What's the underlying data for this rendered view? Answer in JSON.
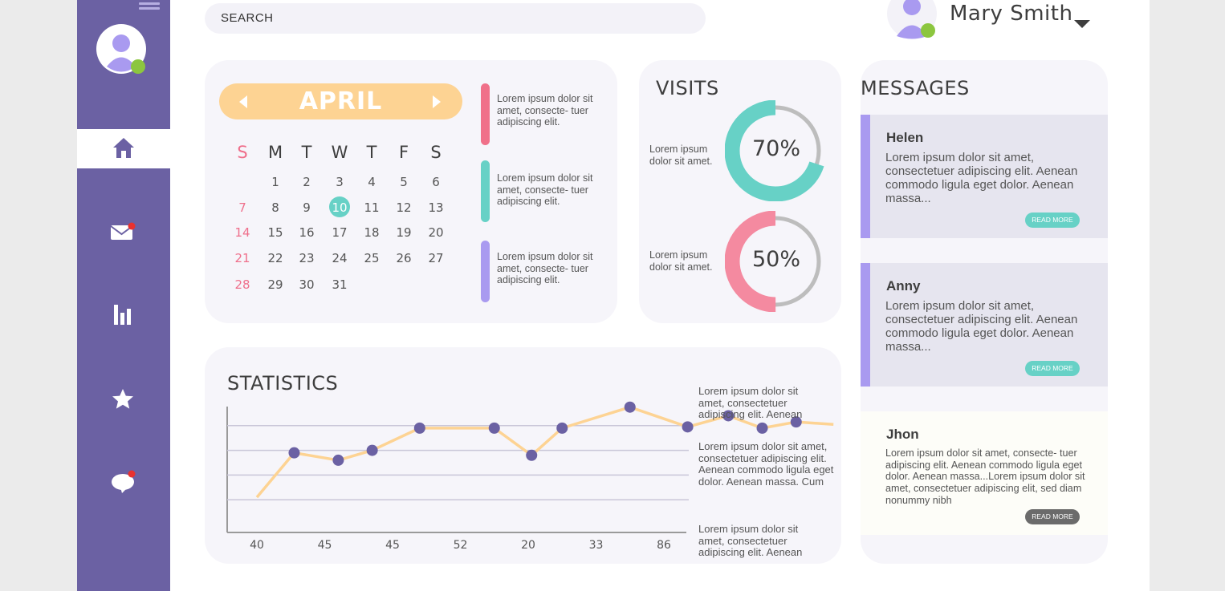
{
  "header": {
    "search_placeholder": "SEARCH",
    "user_name": "Mary Smith"
  },
  "sidebar": {
    "items": [
      {
        "name": "home",
        "icon": "home-icon",
        "active": true
      },
      {
        "name": "mail",
        "icon": "mail-icon",
        "badge": true
      },
      {
        "name": "statistics",
        "icon": "bar-chart-icon"
      },
      {
        "name": "favorites",
        "icon": "star-icon"
      },
      {
        "name": "chat",
        "icon": "chat-icon",
        "badge": true
      }
    ]
  },
  "calendar": {
    "month": "APRIL",
    "weekdays": [
      "S",
      "M",
      "T",
      "W",
      "T",
      "F",
      "S"
    ],
    "weeks": [
      [
        "",
        "1",
        "2",
        "3",
        "4",
        "5",
        "6"
      ],
      [
        "7",
        "8",
        "9",
        "10",
        "11",
        "12",
        "13"
      ],
      [
        "14",
        "15",
        "16",
        "17",
        "18",
        "19",
        "20"
      ],
      [
        "21",
        "22",
        "23",
        "24",
        "25",
        "26",
        "27"
      ],
      [
        "28",
        "29",
        "30",
        "31",
        "",
        "",
        ""
      ]
    ],
    "today": "10",
    "notes": [
      {
        "text": "Lorem ipsum dolor sit amet, consecte- tuer adipiscing elit.",
        "color": "#f07089"
      },
      {
        "text": "Lorem ipsum dolor sit amet, consecte- tuer adipiscing elit.",
        "color": "#67d1c6"
      },
      {
        "text": "Lorem ipsum dolor sit amet, consecte- tuer adipiscing elit.",
        "color": "#a99af0"
      }
    ]
  },
  "visits": {
    "title": "VISITS",
    "items": [
      {
        "label": "Lorem ipsum dolor sit amet.",
        "percent_label": "70%",
        "value": 0.7,
        "color": "#67d1c6"
      },
      {
        "label": "Lorem ipsum dolor sit amet.",
        "percent_label": "50%",
        "value": 0.5,
        "color": "#f48aa0"
      }
    ]
  },
  "messages": {
    "title": "MESSAGES",
    "items": [
      {
        "name": "Helen",
        "body": "Lorem ipsum dolor sit amet, consectetuer adipiscing elit. Aenean commodo ligula eget dolor. Aenean massa...",
        "button": "READ MORE",
        "button_color": "#67d1c6"
      },
      {
        "name": "Anny",
        "body": "Lorem ipsum dolor sit amet, consectetuer adipiscing elit. Aenean commodo ligula eget dolor. Aenean massa...",
        "button": "READ MORE",
        "button_color": "#67d1c6"
      },
      {
        "name": "Jhon",
        "body": "Lorem ipsum dolor sit amet, consecte- tuer adipiscing elit. Aenean commodo ligula eget dolor. Aenean massa...Lorem ipsum dolor sit amet, consectetuer adipiscing elit, sed diam nonummy nibh",
        "button": "READ MORE",
        "button_color": "#6b6b6b"
      }
    ]
  },
  "statistics": {
    "title": "STATISTICS",
    "notes": [
      "Lorem ipsum dolor sit amet, consectetuer adipiscing elit. Aenean",
      "Lorem ipsum dolor sit amet, consectetuer adipiscing elit. Aenean commodo ligula eget dolor. Aenean massa. Cum",
      "Lorem ipsum dolor sit amet, consectetuer adipiscing elit. Aenean"
    ]
  },
  "chart_data": {
    "type": "line",
    "x_tick_labels": [
      "40",
      "45",
      "45",
      "52",
      "20",
      "33",
      "86"
    ],
    "points": [
      {
        "x": 0,
        "y": 1.1,
        "marker": false
      },
      {
        "x": 0.55,
        "y": 2.9,
        "marker": true
      },
      {
        "x": 1.2,
        "y": 2.6,
        "marker": true
      },
      {
        "x": 1.7,
        "y": 3.0,
        "marker": true
      },
      {
        "x": 2.4,
        "y": 3.9,
        "marker": true
      },
      {
        "x": 3.5,
        "y": 3.9,
        "marker": true
      },
      {
        "x": 4.05,
        "y": 2.8,
        "marker": true
      },
      {
        "x": 4.5,
        "y": 3.9,
        "marker": true
      },
      {
        "x": 5.5,
        "y": 4.75,
        "marker": true
      },
      {
        "x": 6.35,
        "y": 3.95,
        "marker": true
      },
      {
        "x": 6.95,
        "y": 4.4,
        "marker": true
      },
      {
        "x": 7.45,
        "y": 3.9,
        "marker": true
      },
      {
        "x": 7.95,
        "y": 4.15,
        "marker": true
      },
      {
        "x": 8.5,
        "y": 4.05,
        "marker": false
      }
    ],
    "xlim": [
      -0.45,
      8.5
    ],
    "ylim": [
      0,
      5
    ],
    "gridlines": [
      1,
      2,
      3,
      4
    ],
    "line_color": "#fdd393",
    "marker_color": "#6b61a3"
  }
}
